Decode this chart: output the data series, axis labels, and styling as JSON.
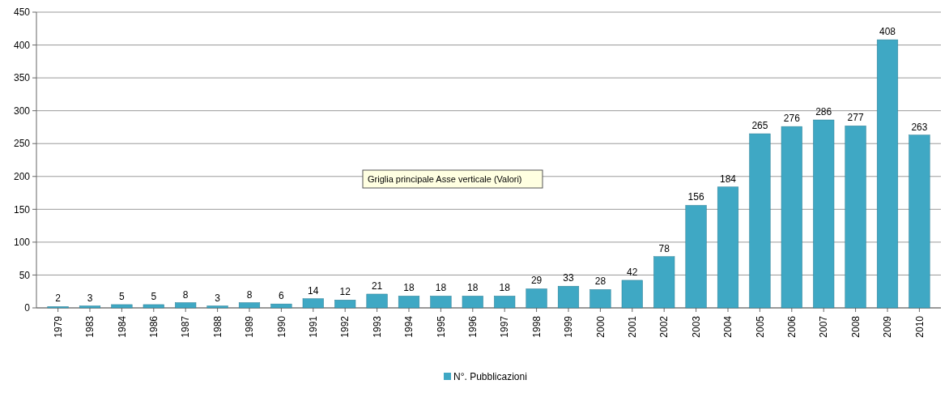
{
  "chart_data": {
    "type": "bar",
    "categories": [
      "1979",
      "1983",
      "1984",
      "1986",
      "1987",
      "1988",
      "1989",
      "1990",
      "1991",
      "1992",
      "1993",
      "1994",
      "1995",
      "1996",
      "1997",
      "1998",
      "1999",
      "2000",
      "2001",
      "2002",
      "2003",
      "2004",
      "2005",
      "2006",
      "2007",
      "2008",
      "2009",
      "2010"
    ],
    "series": [
      {
        "name": "N°. Pubblicazioni",
        "color": "#3fa8c4",
        "values": [
          2,
          3,
          5,
          5,
          8,
          3,
          8,
          6,
          14,
          12,
          21,
          18,
          18,
          18,
          18,
          29,
          33,
          28,
          42,
          78,
          156,
          184,
          265,
          276,
          286,
          277,
          408,
          263
        ]
      }
    ],
    "ylim": [
      0,
      450
    ],
    "yticks": [
      0,
      50,
      100,
      150,
      200,
      250,
      300,
      350,
      400,
      450
    ],
    "grid": "y",
    "data_labels": true,
    "legend": "bottom",
    "annotations": [
      "Griglia principale Asse verticale (Valori)"
    ]
  }
}
